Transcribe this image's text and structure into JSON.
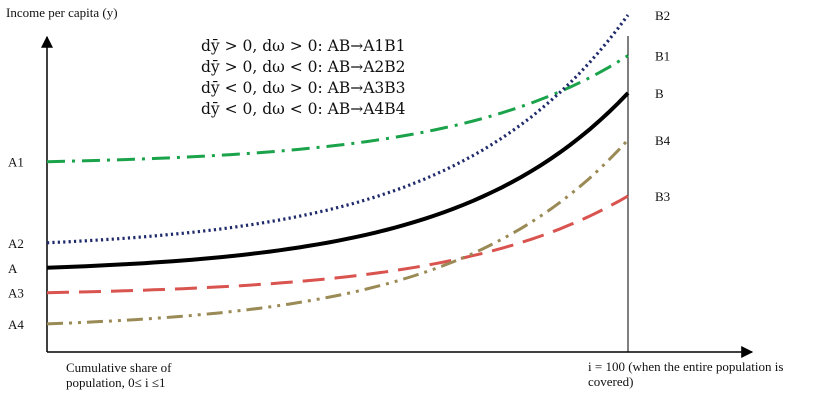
{
  "chart_data": {
    "type": "line",
    "title": "",
    "ylabel": "Income per capita (y)",
    "xlabel": "Cumulative share of population, 0≤ i ≤1",
    "xlabel_lines": [
      "Cumulative share of",
      "population, 0≤ i ≤1"
    ],
    "end_label_lines": [
      "i = 100 (when the entire population is",
      "covered)"
    ],
    "legend": [
      "dȳ > 0, dω > 0: AB→A1B1",
      "dȳ > 0, dω < 0: AB→A2B2",
      "dȳ < 0, dω > 0: AB→A3B3",
      "dȳ < 0, dω < 0: AB→A4B4"
    ],
    "grid": false,
    "series": [
      {
        "start": "A1",
        "end": "B1",
        "color": "#1aa34a",
        "dash": "dash-dot",
        "level_start": 0.61,
        "level_end": 0.95
      },
      {
        "start": "A2",
        "end": "B2",
        "color": "#1f2a6b",
        "dash": "dotted",
        "level_start": 0.35,
        "level_end": 1.08
      },
      {
        "start": "A",
        "end": "B",
        "color": "#000000",
        "dash": "solid",
        "level_start": 0.27,
        "level_end": 0.83
      },
      {
        "start": "A3",
        "end": "B3",
        "color": "#d9534f",
        "dash": "dashed",
        "level_start": 0.19,
        "level_end": 0.5
      },
      {
        "start": "A4",
        "end": "B4",
        "color": "#9a8a55",
        "dash": "dash-dot-dot",
        "level_start": 0.09,
        "level_end": 0.68
      }
    ]
  }
}
